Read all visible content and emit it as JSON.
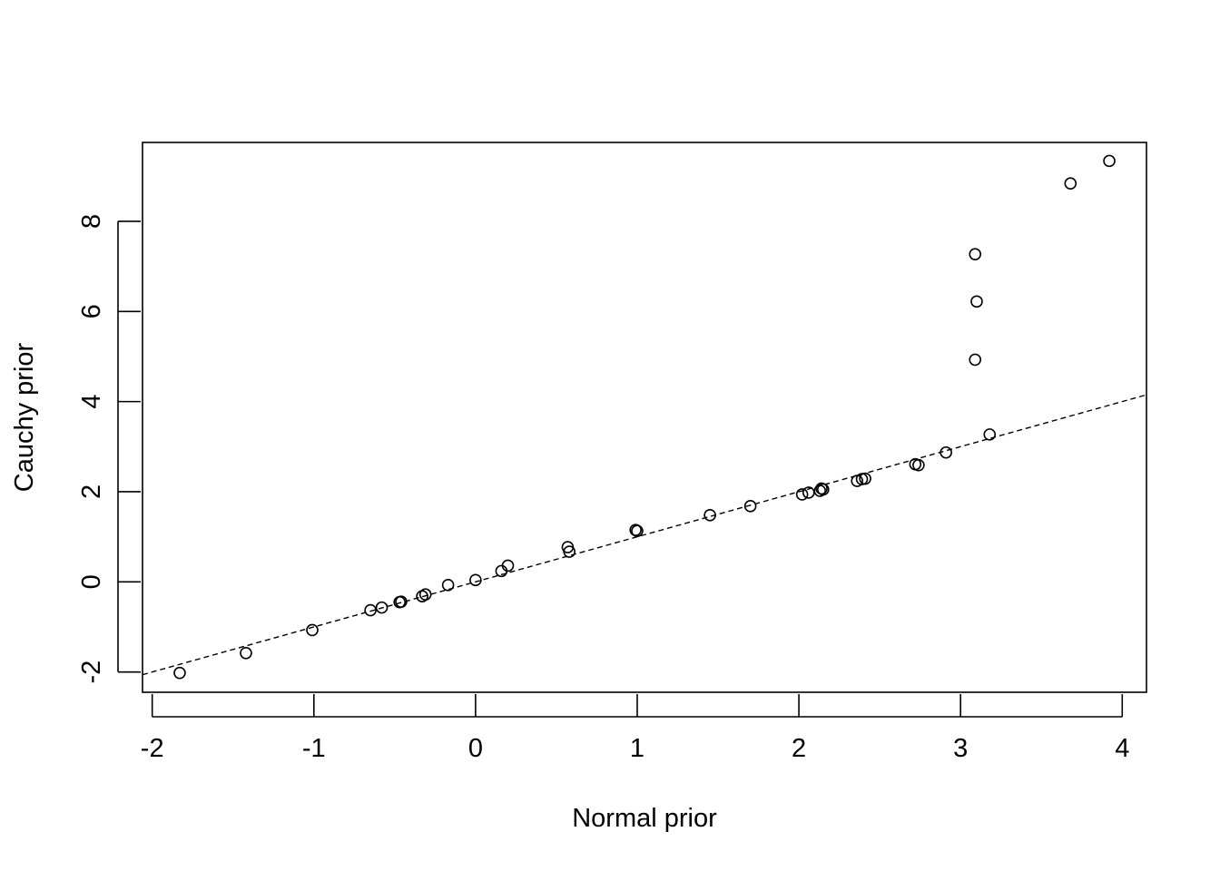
{
  "chart_data": {
    "type": "scatter",
    "xlabel": "Normal prior",
    "ylabel": "Cauchy prior",
    "xlim": [
      -2.06,
      4.15
    ],
    "ylim": [
      -2.45,
      9.75
    ],
    "x_ticks": [
      -2,
      -1,
      0,
      1,
      2,
      3,
      4
    ],
    "y_ticks": [
      -2,
      0,
      2,
      4,
      6,
      8
    ],
    "reference_line": {
      "style": "dashed",
      "intercept": 0,
      "slope": 1,
      "note": "y = x"
    },
    "points": [
      {
        "x": -1.83,
        "y": -2.02
      },
      {
        "x": -1.42,
        "y": -1.58
      },
      {
        "x": -1.01,
        "y": -1.07
      },
      {
        "x": -0.65,
        "y": -0.63
      },
      {
        "x": -0.58,
        "y": -0.57
      },
      {
        "x": -0.47,
        "y": -0.45
      },
      {
        "x": -0.46,
        "y": -0.44
      },
      {
        "x": -0.33,
        "y": -0.32
      },
      {
        "x": -0.31,
        "y": -0.28
      },
      {
        "x": -0.17,
        "y": -0.07
      },
      {
        "x": 0.0,
        "y": 0.04
      },
      {
        "x": 0.16,
        "y": 0.24
      },
      {
        "x": 0.2,
        "y": 0.36
      },
      {
        "x": 0.57,
        "y": 0.77
      },
      {
        "x": 0.58,
        "y": 0.67
      },
      {
        "x": 0.99,
        "y": 1.15
      },
      {
        "x": 1.0,
        "y": 1.13
      },
      {
        "x": 1.45,
        "y": 1.48
      },
      {
        "x": 1.7,
        "y": 1.68
      },
      {
        "x": 2.02,
        "y": 1.94
      },
      {
        "x": 2.06,
        "y": 1.98
      },
      {
        "x": 2.13,
        "y": 2.02
      },
      {
        "x": 2.14,
        "y": 2.07
      },
      {
        "x": 2.15,
        "y": 2.05
      },
      {
        "x": 2.36,
        "y": 2.24
      },
      {
        "x": 2.39,
        "y": 2.28
      },
      {
        "x": 2.41,
        "y": 2.29
      },
      {
        "x": 2.72,
        "y": 2.61
      },
      {
        "x": 2.74,
        "y": 2.59
      },
      {
        "x": 2.91,
        "y": 2.87
      },
      {
        "x": 3.09,
        "y": 7.27
      },
      {
        "x": 3.1,
        "y": 6.22
      },
      {
        "x": 3.09,
        "y": 4.93
      },
      {
        "x": 3.18,
        "y": 3.27
      },
      {
        "x": 3.68,
        "y": 8.84
      },
      {
        "x": 3.92,
        "y": 9.34
      }
    ]
  }
}
